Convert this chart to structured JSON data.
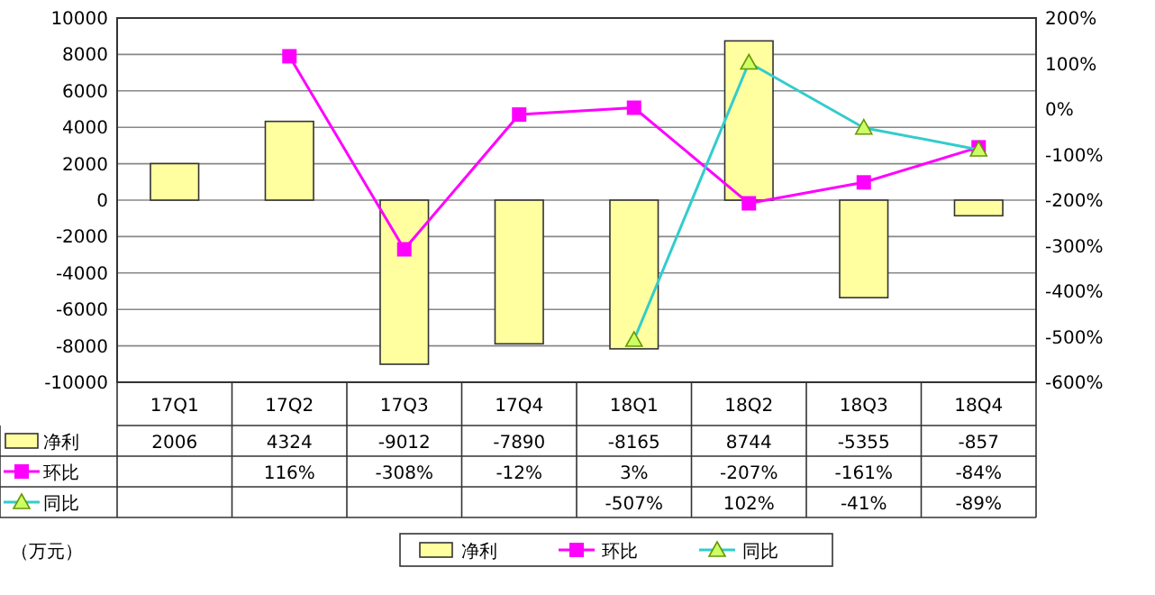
{
  "chart_data": {
    "type": "bar",
    "categories": [
      "17Q1",
      "17Q2",
      "17Q3",
      "17Q4",
      "18Q1",
      "18Q2",
      "18Q3",
      "18Q4"
    ],
    "series": [
      {
        "name": "净利",
        "color": "#ffffa0",
        "values": [
          2006,
          4324,
          -9012,
          -7890,
          -8165,
          8744,
          -5355,
          -857
        ],
        "value_labels": [
          "2006",
          "4324",
          "-9012",
          "-7890",
          "-8165",
          "8744",
          "-5355",
          "-857"
        ]
      },
      {
        "name": "环比",
        "type": "line",
        "axis": "y2",
        "color": "#ff00ff",
        "marker": "square",
        "values": [
          null,
          116,
          -308,
          -12,
          3,
          -207,
          -161,
          -84
        ],
        "value_labels": [
          null,
          "116%",
          "-308%",
          "-12%",
          "3%",
          "-207%",
          "-161%",
          "-84%"
        ]
      },
      {
        "name": "同比",
        "type": "line",
        "axis": "y2",
        "color": "#33cccc",
        "marker": "triangle",
        "values": [
          null,
          null,
          null,
          null,
          -507,
          102,
          -41,
          -89
        ],
        "value_labels": [
          null,
          null,
          null,
          null,
          "-507%",
          "102%",
          "-41%",
          "-89%"
        ]
      }
    ],
    "ylim": [
      -10000,
      10000
    ],
    "yticks": [
      -10000,
      -8000,
      -6000,
      -4000,
      -2000,
      0,
      2000,
      4000,
      6000,
      8000,
      10000
    ],
    "y2lim": [
      -600,
      200
    ],
    "y2ticks": [
      {
        "value": -600,
        "label": "-600%"
      },
      {
        "value": -500,
        "label": "-500%"
      },
      {
        "value": -400,
        "label": "-400%"
      },
      {
        "value": -300,
        "label": "-300%"
      },
      {
        "value": -200,
        "label": "-200%"
      },
      {
        "value": -100,
        "label": "-100%"
      },
      {
        "value": 0,
        "label": "0%"
      },
      {
        "value": 100,
        "label": "100%"
      },
      {
        "value": 200,
        "label": "200%"
      }
    ],
    "grid": "y",
    "legend": "bottom",
    "annotations": [
      "（万元）"
    ]
  }
}
